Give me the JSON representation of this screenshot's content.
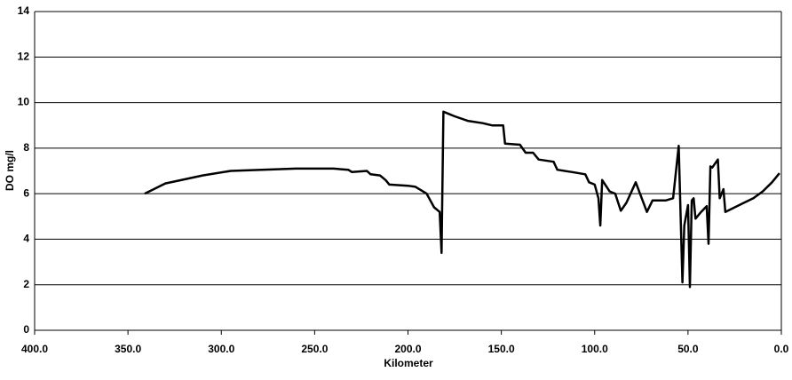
{
  "chart_data": {
    "type": "line",
    "x_label": "Kilometer",
    "y_label": "DO mg/l",
    "x": [
      341,
      330,
      310,
      295,
      260,
      240,
      232,
      230,
      222,
      220,
      215,
      212,
      210,
      200,
      196,
      190,
      188,
      186,
      183,
      182,
      181,
      175,
      168,
      160,
      155,
      149,
      148,
      140,
      137,
      133,
      130,
      122,
      120,
      112,
      105,
      103,
      100,
      98,
      97,
      96,
      92,
      89,
      86,
      83,
      78,
      72,
      69,
      62,
      58,
      55,
      53,
      52,
      50,
      49,
      48,
      47,
      46,
      43,
      40,
      39,
      38,
      37,
      34,
      33,
      31,
      30,
      20,
      15,
      10,
      5,
      1
    ],
    "series": [
      {
        "color": "#000000",
        "values": [
          6.0,
          6.45,
          6.8,
          7.0,
          7.1,
          7.1,
          7.05,
          6.95,
          7.0,
          6.85,
          6.8,
          6.6,
          6.4,
          6.35,
          6.3,
          6.0,
          5.7,
          5.4,
          5.2,
          3.4,
          9.6,
          9.4,
          9.2,
          9.1,
          9.0,
          9.0,
          8.2,
          8.15,
          7.8,
          7.8,
          7.5,
          7.4,
          7.05,
          6.95,
          6.85,
          6.5,
          6.4,
          5.8,
          4.6,
          6.6,
          6.1,
          6.0,
          5.25,
          5.6,
          6.5,
          5.2,
          5.7,
          5.7,
          5.8,
          8.1,
          2.1,
          4.6,
          5.5,
          1.9,
          5.7,
          5.8,
          4.9,
          5.2,
          5.45,
          3.8,
          7.2,
          7.15,
          7.5,
          5.8,
          6.2,
          5.2,
          5.6,
          5.8,
          6.1,
          6.5,
          6.9
        ]
      }
    ],
    "xlim": [
      400,
      0
    ],
    "xticks": [
      {
        "value": 400,
        "label": "400.0"
      },
      {
        "value": 350,
        "label": "350.0"
      },
      {
        "value": 300,
        "label": "300.0"
      },
      {
        "value": 250,
        "label": "250.0"
      },
      {
        "value": 200,
        "label": "200.0"
      },
      {
        "value": 150,
        "label": "150.0"
      },
      {
        "value": 100,
        "label": "100.0"
      },
      {
        "value": 50,
        "label": "50.0"
      },
      {
        "value": 0,
        "label": "0.0"
      }
    ],
    "ylim": [
      0,
      14
    ],
    "yticks": [
      0,
      2,
      4,
      6,
      8,
      10,
      12,
      14
    ],
    "grid": true
  }
}
